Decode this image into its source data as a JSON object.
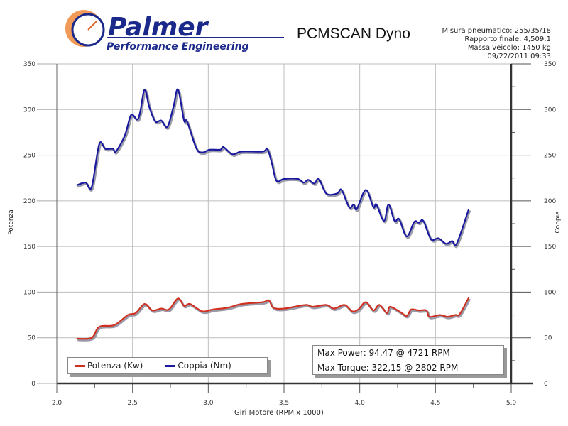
{
  "logo": {
    "name": "Palmer",
    "subtitle": "Performance Engineering"
  },
  "header": {
    "title": "PCMSCAN Dyno",
    "meta": [
      "Misura pneumatico: 255/35/18",
      "Rapporto finale: 4,509:1",
      "Massa veicolo: 1450 kg",
      "09/22/2011 09:33"
    ]
  },
  "info": {
    "max_power": "Max Power: 94,47 @ 4721 RPM",
    "max_torque": "Max Torque: 322,15 @ 2802 RPM"
  },
  "colors": {
    "power": "#d03020",
    "torque": "#1a1aa0",
    "grid": "#bdbdbd",
    "axis": "#333333"
  },
  "chart_data": {
    "type": "line",
    "title": "PCMSCAN Dyno",
    "xlabel": "Giri Motore (RPM x 1000)",
    "ylabel": "Potenza",
    "ylabel_right": "Coppia",
    "xlim": [
      2.0,
      5.0
    ],
    "ylim": [
      0,
      350
    ],
    "xticks": [
      "2,0",
      "2,5",
      "3,0",
      "3,5",
      "4,0",
      "4,5",
      "5,0"
    ],
    "yticks": [
      "0",
      "50",
      "100",
      "150",
      "200",
      "250",
      "300",
      "350"
    ],
    "grid": true,
    "legend_position": "bottom-left",
    "legend": [
      "Potenza (Kw)",
      "Coppia (Nm)"
    ],
    "series": [
      {
        "name": "Potenza (Kw)",
        "color": "#d03020",
        "x": [
          2.13,
          2.23,
          2.28,
          2.38,
          2.47,
          2.52,
          2.58,
          2.63,
          2.69,
          2.74,
          2.8,
          2.84,
          2.88,
          2.96,
          3.03,
          3.13,
          3.22,
          3.36,
          3.4,
          3.43,
          3.5,
          3.64,
          3.69,
          3.78,
          3.83,
          3.9,
          3.95,
          3.99,
          4.04,
          4.09,
          4.13,
          4.18,
          4.2,
          4.27,
          4.31,
          4.34,
          4.39,
          4.44,
          4.46,
          4.53,
          4.58,
          4.63,
          4.66,
          4.72
        ],
        "y": [
          49,
          50,
          62,
          64,
          75,
          77,
          87,
          80,
          82,
          81,
          93,
          85,
          87,
          79,
          81,
          83,
          87,
          89,
          91,
          83,
          82,
          86,
          84,
          86,
          82,
          86,
          79,
          81,
          89,
          80,
          86,
          77,
          84,
          78,
          74,
          81,
          80,
          80,
          73,
          75,
          73,
          75,
          76,
          94
        ]
      },
      {
        "name": "Coppia (Nm)",
        "color": "#1a1aa0",
        "x": [
          2.13,
          2.19,
          2.23,
          2.28,
          2.32,
          2.37,
          2.39,
          2.45,
          2.49,
          2.53,
          2.55,
          2.58,
          2.61,
          2.65,
          2.69,
          2.73,
          2.77,
          2.8,
          2.84,
          2.86,
          2.92,
          2.96,
          3.01,
          3.08,
          3.1,
          3.16,
          3.22,
          3.36,
          3.39,
          3.42,
          3.45,
          3.5,
          3.59,
          3.63,
          3.66,
          3.7,
          3.73,
          3.78,
          3.85,
          3.88,
          3.93,
          3.96,
          3.98,
          4.04,
          4.09,
          4.11,
          4.16,
          4.19,
          4.23,
          4.26,
          4.31,
          4.36,
          4.39,
          4.42,
          4.47,
          4.52,
          4.57,
          4.61,
          4.64,
          4.72
        ],
        "y": [
          217,
          220,
          215,
          262,
          257,
          257,
          254,
          272,
          294,
          289,
          297,
          322,
          303,
          287,
          288,
          281,
          303,
          322,
          288,
          287,
          258,
          253,
          256,
          256,
          259,
          251,
          254,
          254,
          257,
          241,
          222,
          224,
          224,
          220,
          223,
          219,
          224,
          208,
          208,
          212,
          193,
          196,
          191,
          212,
          193,
          196,
          178,
          196,
          178,
          180,
          161,
          177,
          176,
          178,
          158,
          159,
          153,
          156,
          153,
          191
        ]
      }
    ]
  }
}
